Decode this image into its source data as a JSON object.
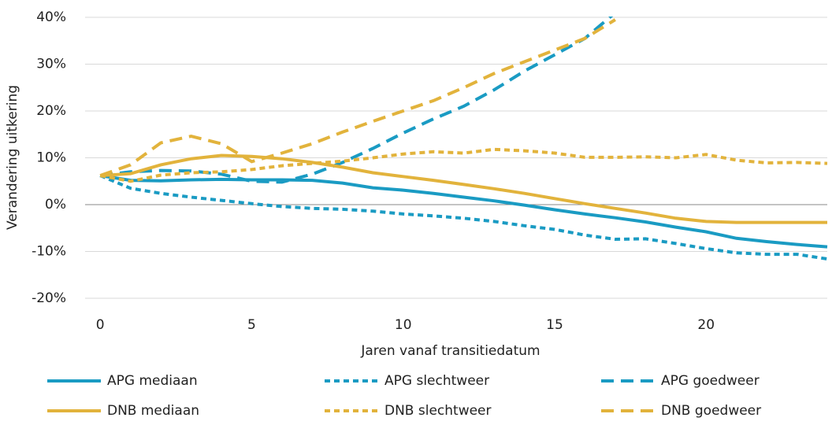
{
  "chart_data": {
    "type": "line",
    "y_label": "Verandering uitkering",
    "x_label": "Jaren vanaf transitiedatum",
    "x": [
      0,
      1,
      2,
      3,
      4,
      5,
      6,
      7,
      8,
      9,
      10,
      11,
      12,
      13,
      14,
      15,
      16,
      17,
      18,
      19,
      20,
      21,
      22,
      23,
      24
    ],
    "xlim": [
      -0.5,
      24
    ],
    "xticks": [
      0,
      5,
      10,
      15,
      20
    ],
    "ylim": [
      -20,
      40
    ],
    "yticks": [
      {
        "value": -20,
        "label": "-20%"
      },
      {
        "value": -10,
        "label": "-10%"
      },
      {
        "value": 0,
        "label": "0%"
      },
      {
        "value": 10,
        "label": "10%"
      },
      {
        "value": 20,
        "label": "20%"
      },
      {
        "value": 30,
        "label": "30%"
      },
      {
        "value": 40,
        "label": "40%"
      }
    ],
    "grid": true,
    "legend": "bottom",
    "series": [
      {
        "name": "APG mediaan",
        "color": "#1a9bc3",
        "dash": "solid",
        "values": [
          6.2,
          5.2,
          5.1,
          5.3,
          5.4,
          5.3,
          5.3,
          5.2,
          4.6,
          3.6,
          3.1,
          2.4,
          1.6,
          0.8,
          -0.1,
          -1.1,
          -2.0,
          -2.8,
          -3.7,
          -4.8,
          -5.8,
          -7.2,
          -7.9,
          -8.5,
          -9.0
        ]
      },
      {
        "name": "APG slechtweer",
        "color": "#1a9bc3",
        "dash": "short",
        "values": [
          6.2,
          3.5,
          2.4,
          1.6,
          0.9,
          0.2,
          -0.4,
          -0.8,
          -1.0,
          -1.4,
          -2.0,
          -2.4,
          -2.9,
          -3.6,
          -4.5,
          -5.3,
          -6.5,
          -7.4,
          -7.3,
          -8.3,
          -9.4,
          -10.3,
          -10.6,
          -10.6,
          -11.6
        ]
      },
      {
        "name": "APG goedweer",
        "color": "#1a9bc3",
        "dash": "long",
        "values": [
          6.2,
          7.0,
          7.3,
          7.2,
          6.5,
          5.0,
          4.8,
          6.5,
          9.0,
          12.0,
          15.3,
          18.3,
          21.0,
          24.5,
          28.5,
          32.0,
          35.5,
          41.0,
          null,
          null,
          null,
          null,
          null,
          null,
          null
        ]
      },
      {
        "name": "DNB mediaan",
        "color": "#e2b33c",
        "dash": "solid",
        "values": [
          6.2,
          6.6,
          8.5,
          9.8,
          10.5,
          10.3,
          9.8,
          9.0,
          8.0,
          6.8,
          6.0,
          5.2,
          4.3,
          3.4,
          2.4,
          1.3,
          0.2,
          -0.8,
          -1.8,
          -2.9,
          -3.6,
          -3.8,
          -3.8,
          -3.8,
          -3.8
        ]
      },
      {
        "name": "DNB slechtweer",
        "color": "#e2b33c",
        "dash": "short",
        "values": [
          6.2,
          5.0,
          6.3,
          6.8,
          7.0,
          7.5,
          8.3,
          8.8,
          9.3,
          10.0,
          10.8,
          11.3,
          11.0,
          11.8,
          11.5,
          11.0,
          10.1,
          10.1,
          10.2,
          10.0,
          10.7,
          9.5,
          8.9,
          9.0,
          8.8
        ]
      },
      {
        "name": "DNB goedweer",
        "color": "#e2b33c",
        "dash": "long",
        "values": [
          6.2,
          8.5,
          13.2,
          14.6,
          13.0,
          9.2,
          11.0,
          13.0,
          15.5,
          17.8,
          20.0,
          22.2,
          25.0,
          28.0,
          30.5,
          33.0,
          35.5,
          39.5,
          null,
          null,
          null,
          null,
          null,
          null,
          null
        ]
      }
    ]
  }
}
